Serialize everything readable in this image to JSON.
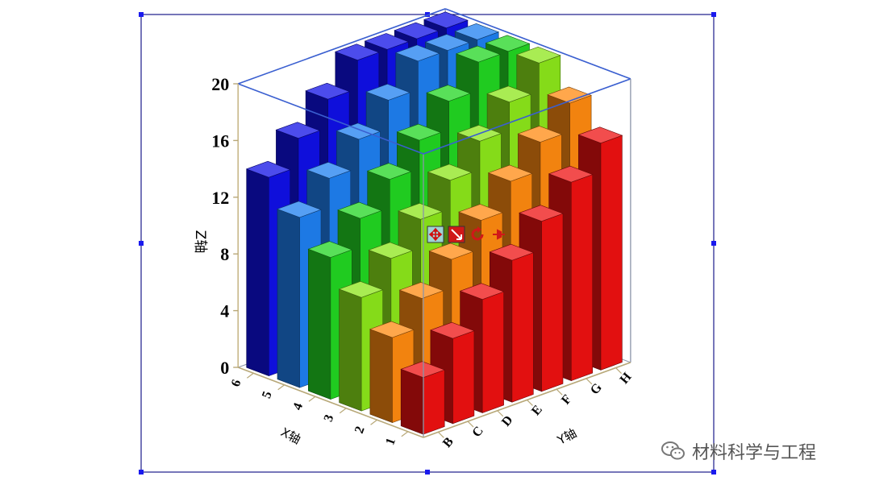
{
  "chart_data": {
    "type": "bar3d",
    "x_categories": [
      "1",
      "2",
      "3",
      "4",
      "5",
      "6"
    ],
    "y_categories": [
      "B",
      "C",
      "D",
      "E",
      "F",
      "G",
      "H"
    ],
    "z_ticks": [
      "0",
      "4",
      "8",
      "12",
      "16",
      "20"
    ],
    "zlim": [
      0,
      20
    ],
    "xlabel": "X轴",
    "ylabel": "Y轴",
    "zlabel": "Z轴",
    "values": [
      [
        4,
        6,
        8,
        10,
        12,
        14,
        16
      ],
      [
        6,
        8,
        10,
        12,
        14,
        16,
        18
      ],
      [
        8,
        10,
        12,
        14,
        16,
        18,
        20
      ],
      [
        10,
        12,
        14,
        16,
        18,
        20,
        20
      ],
      [
        12,
        14,
        16,
        18,
        20,
        20,
        20
      ],
      [
        14,
        16,
        18,
        20,
        20,
        20,
        20
      ]
    ],
    "row_colors": [
      "#ee1111",
      "#ff8a10",
      "#8ce61a",
      "#22d622",
      "#1e7ff0",
      "#1010e6"
    ],
    "grid": false
  },
  "watermark": {
    "text": "材料科学与工程",
    "icon": "wechat-icon"
  },
  "toolbar": {
    "icons": [
      "move-icon",
      "resize-icon",
      "rotate-icon",
      "pin-icon"
    ]
  }
}
